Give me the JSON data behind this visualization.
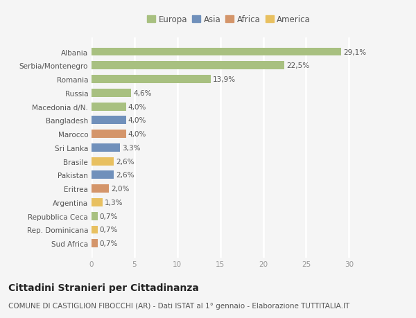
{
  "countries": [
    "Albania",
    "Serbia/Montenegro",
    "Romania",
    "Russia",
    "Macedonia d/N.",
    "Bangladesh",
    "Marocco",
    "Sri Lanka",
    "Brasile",
    "Pakistan",
    "Eritrea",
    "Argentina",
    "Repubblica Ceca",
    "Rep. Dominicana",
    "Sud Africa"
  ],
  "values": [
    29.1,
    22.5,
    13.9,
    4.6,
    4.0,
    4.0,
    4.0,
    3.3,
    2.6,
    2.6,
    2.0,
    1.3,
    0.7,
    0.7,
    0.7
  ],
  "labels": [
    "29,1%",
    "22,5%",
    "13,9%",
    "4,6%",
    "4,0%",
    "4,0%",
    "4,0%",
    "3,3%",
    "2,6%",
    "2,6%",
    "2,0%",
    "1,3%",
    "0,7%",
    "0,7%",
    "0,7%"
  ],
  "colors": [
    "#a8c080",
    "#a8c080",
    "#a8c080",
    "#a8c080",
    "#a8c080",
    "#7090bb",
    "#d4956a",
    "#7090bb",
    "#e8c060",
    "#7090bb",
    "#d4956a",
    "#e8c060",
    "#a8c080",
    "#e8c060",
    "#d4956a"
  ],
  "legend_labels": [
    "Europa",
    "Asia",
    "Africa",
    "America"
  ],
  "legend_colors": [
    "#a8c080",
    "#7090bb",
    "#d4956a",
    "#e8c060"
  ],
  "title": "Cittadini Stranieri per Cittadinanza",
  "subtitle": "COMUNE DI CASTIGLION FIBOCCHI (AR) - Dati ISTAT al 1° gennaio - Elaborazione TUTTITALIA.IT",
  "xlim": [
    0,
    32
  ],
  "xticks": [
    0,
    5,
    10,
    15,
    20,
    25,
    30
  ],
  "background_color": "#f5f5f5",
  "grid_color": "#ffffff",
  "bar_height": 0.6,
  "title_fontsize": 10,
  "subtitle_fontsize": 7.5,
  "label_fontsize": 7.5,
  "tick_fontsize": 7.5,
  "legend_fontsize": 8.5
}
